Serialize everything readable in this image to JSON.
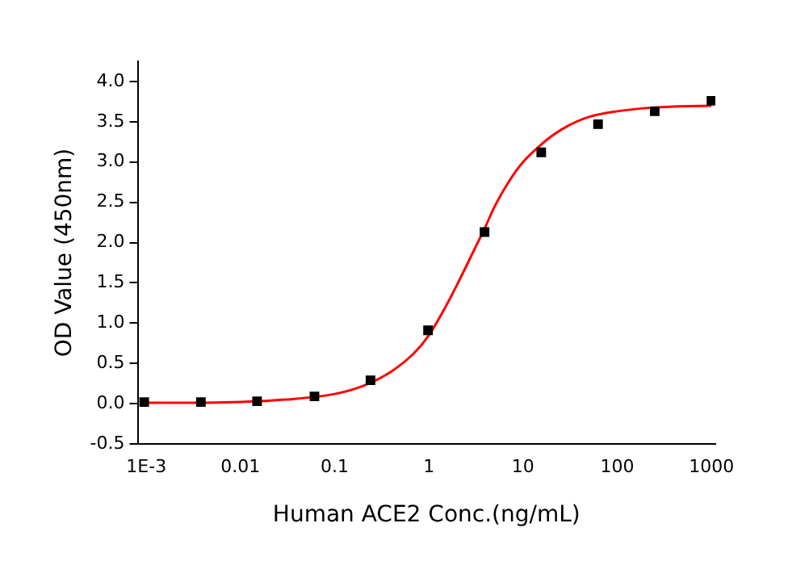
{
  "chart_data": {
    "type": "scatter",
    "xlabel": "Human ACE2 Conc.(ng/mL)",
    "ylabel": "OD Value (450nm)",
    "log": "x",
    "grid": false,
    "legend": false,
    "marker": "square",
    "xlim": [
      0.00081,
      1100
    ],
    "xticks": [
      {
        "value": 0.001,
        "label": "1E-3"
      },
      0.01,
      0.1,
      1,
      10,
      100,
      1000
    ],
    "ylim": [
      -0.5,
      4.25
    ],
    "yticks": [
      {
        "value": -0.5,
        "label": "-0.5"
      },
      {
        "value": 0,
        "label": "0.0"
      },
      0.5,
      {
        "value": 1,
        "label": "1.0"
      },
      1.5,
      {
        "value": 2,
        "label": "2.0"
      },
      2.5,
      {
        "value": 3,
        "label": "3.0"
      },
      3.5,
      {
        "value": 4,
        "label": "4.0"
      }
    ],
    "series": [
      {
        "color": "#000000",
        "x": [
          0.00095,
          0.0038,
          0.015,
          0.061,
          0.24,
          0.98,
          3.9,
          15.6,
          62.5,
          250,
          1000
        ],
        "values": [
          0.02,
          0.02,
          0.03,
          0.09,
          0.29,
          0.91,
          2.13,
          3.12,
          3.47,
          3.63,
          3.76
        ]
      },
      {
        "type": "line",
        "color": "#ff0000",
        "marker": "none",
        "x": [
          0.00095,
          0.003,
          0.01,
          0.03,
          0.1,
          0.2,
          0.4,
          0.7,
          1,
          1.5,
          2,
          3,
          4,
          5,
          7,
          10,
          15,
          20,
          30,
          50,
          100,
          200,
          400,
          1000
        ],
        "values": [
          0.01,
          0.01,
          0.02,
          0.05,
          0.12,
          0.22,
          0.4,
          0.63,
          0.85,
          1.2,
          1.48,
          1.9,
          2.2,
          2.45,
          2.75,
          3.0,
          3.2,
          3.32,
          3.45,
          3.56,
          3.63,
          3.67,
          3.69,
          3.7
        ]
      }
    ]
  }
}
